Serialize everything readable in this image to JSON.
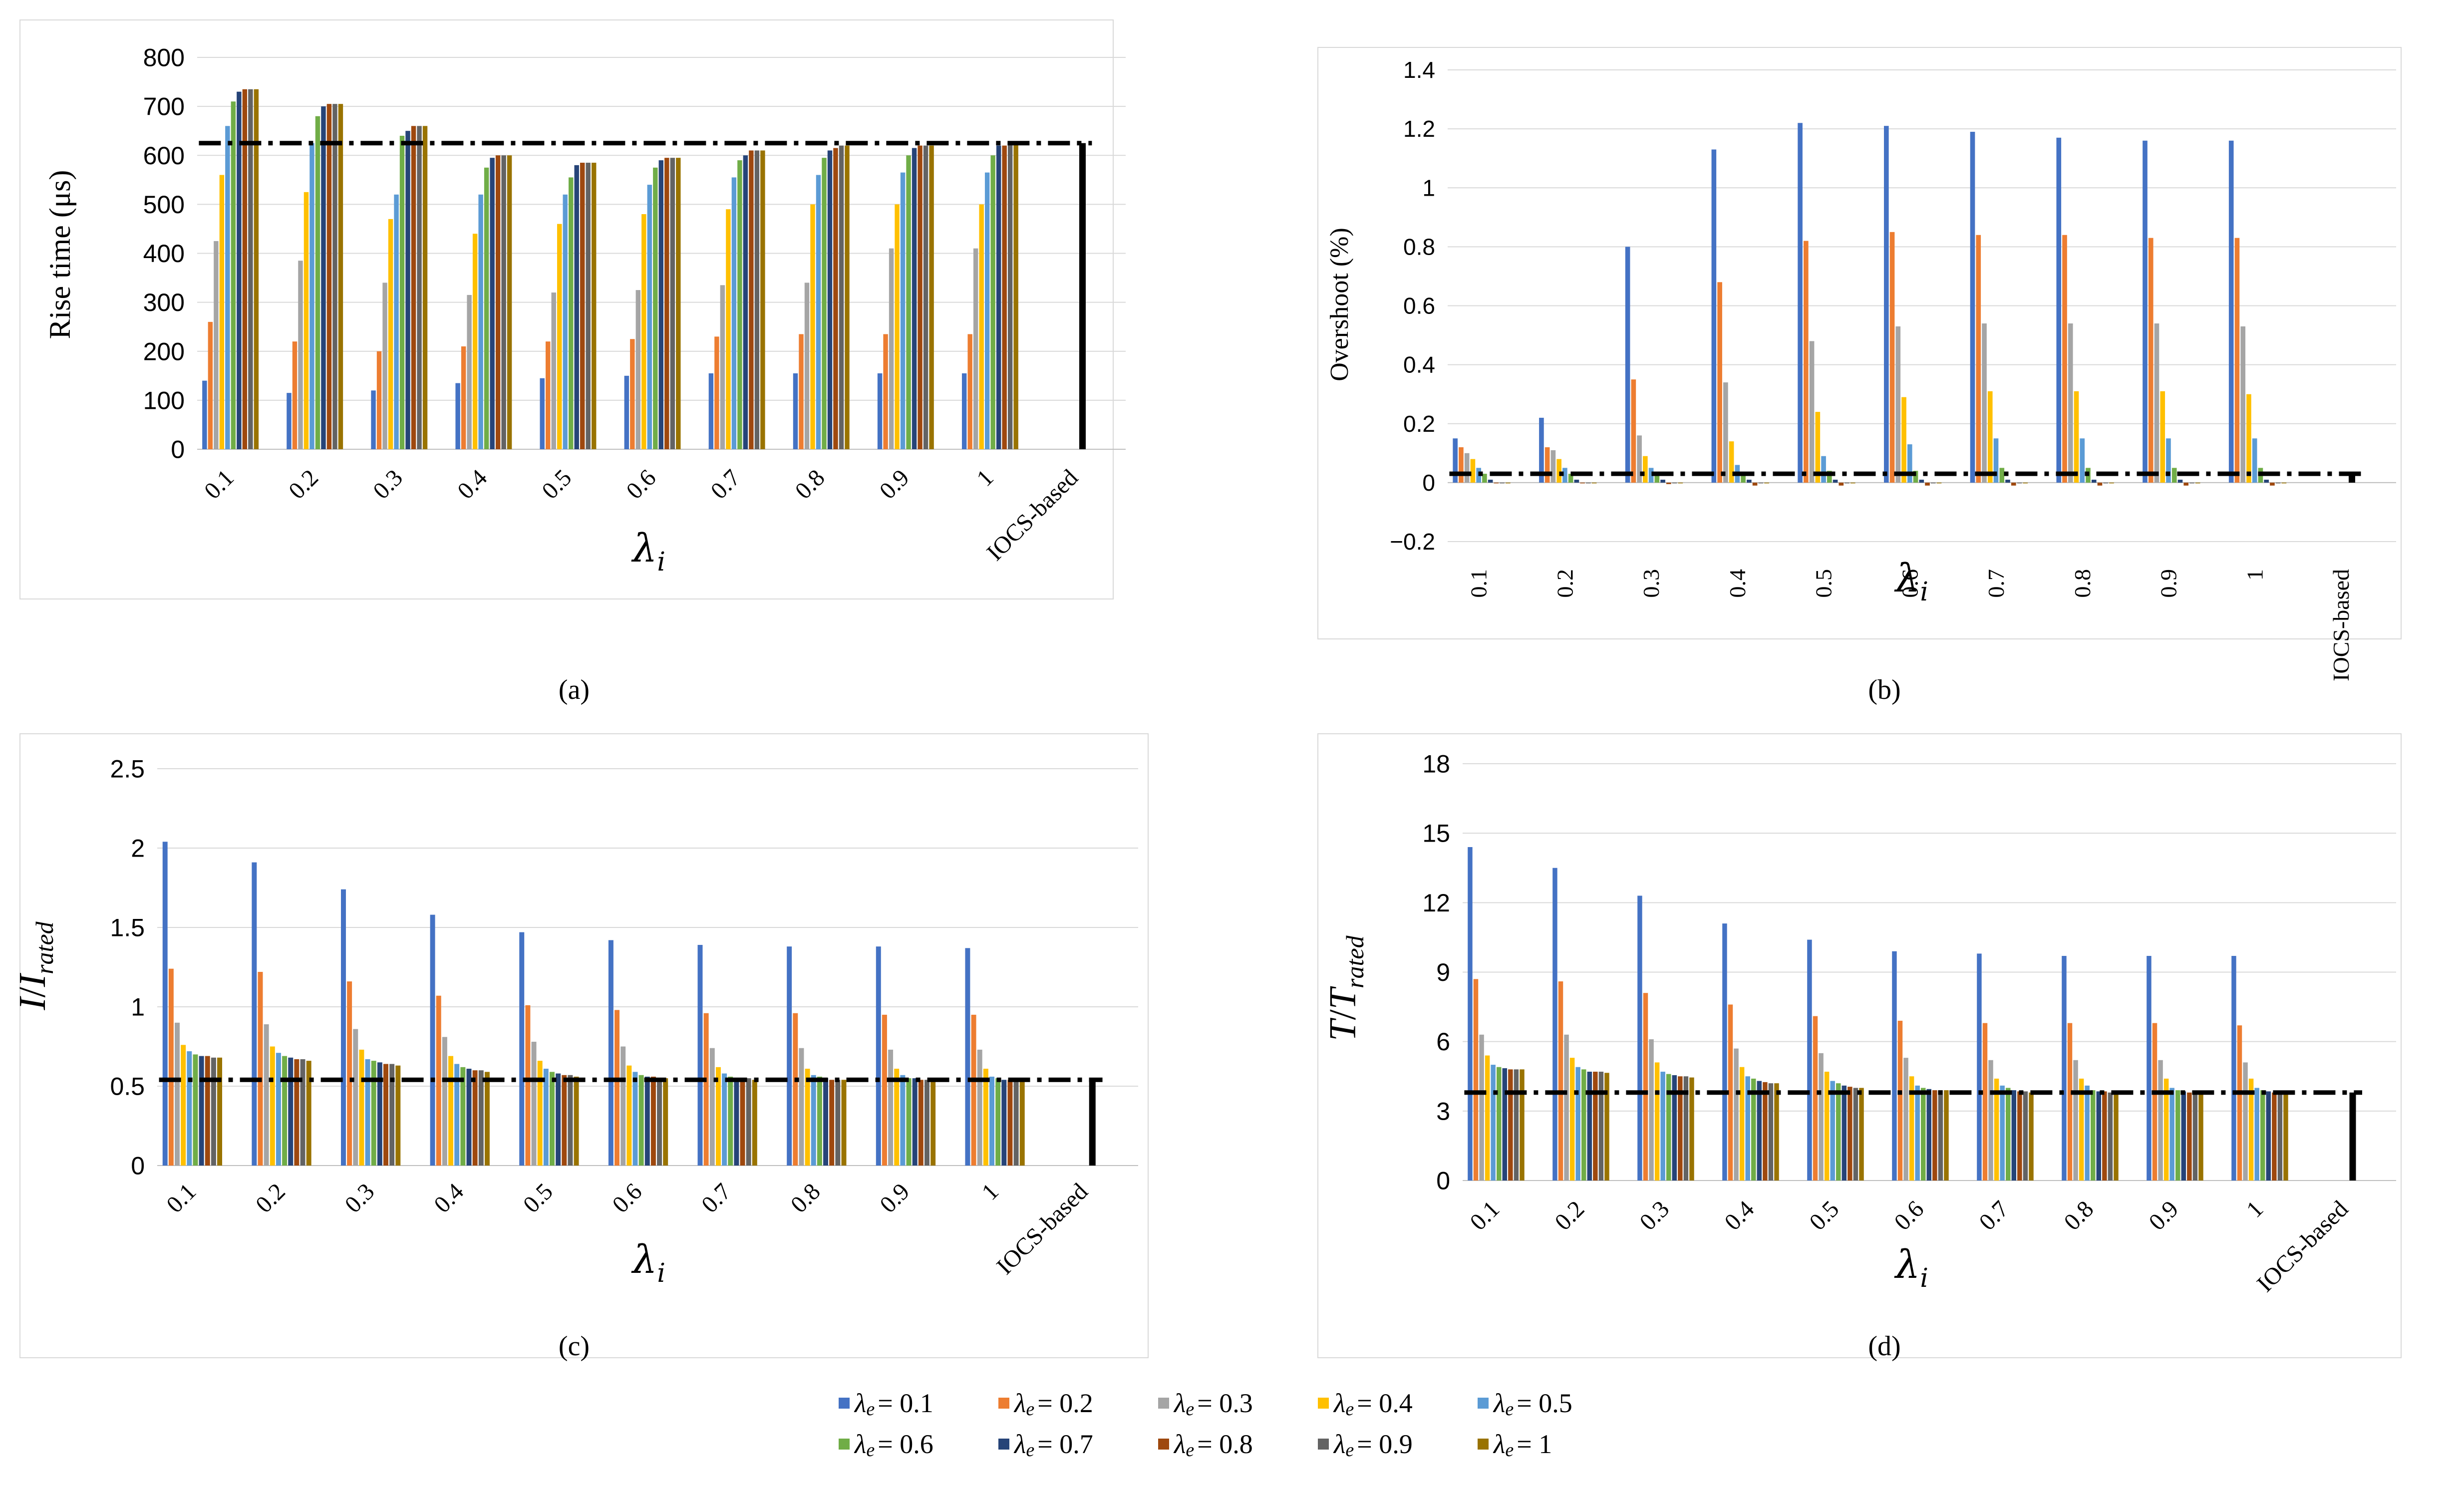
{
  "legend": {
    "prefix": "λ",
    "subscript": "e",
    "entries": [
      "= 0.1",
      "= 0.2",
      "= 0.3",
      "= 0.4",
      "= 0.5",
      "= 0.6",
      "= 0.7",
      "= 0.8",
      "= 0.9",
      "= 1"
    ]
  },
  "series_colors": [
    "#4472C4",
    "#ED7D31",
    "#A5A5A5",
    "#FFC000",
    "#5B9BD5",
    "#70AD47",
    "#264478",
    "#9E480E",
    "#636363",
    "#997300"
  ],
  "reference_color": "#000000",
  "chart_data": [
    {
      "type": "bar",
      "panel_label": "(a)",
      "categories": [
        "0.1",
        "0.2",
        "0.3",
        "0.4",
        "0.5",
        "0.6",
        "0.7",
        "0.8",
        "0.9",
        "1",
        "IOCS-based"
      ],
      "ylabel": "Rise time (μs)",
      "xlabel": "λ_i",
      "xlabel_main": "λ",
      "xlabel_sub": "i",
      "ylim": [
        0,
        800
      ],
      "yticks": [
        0,
        100,
        200,
        300,
        400,
        500,
        600,
        700,
        800
      ],
      "ytick_labels": [
        "0",
        "100",
        "200",
        "300",
        "400",
        "500",
        "600",
        "700",
        "800"
      ],
      "reference_line": 625,
      "reference_bar": 625,
      "series": [
        {
          "name": "λe = 0.1",
          "values": [
            140,
            115,
            120,
            135,
            145,
            150,
            155,
            155,
            155,
            155,
            null
          ]
        },
        {
          "name": "λe = 0.2",
          "values": [
            260,
            220,
            200,
            210,
            220,
            225,
            230,
            235,
            235,
            235,
            null
          ]
        },
        {
          "name": "λe = 0.3",
          "values": [
            425,
            385,
            340,
            315,
            320,
            325,
            335,
            340,
            410,
            410,
            null
          ]
        },
        {
          "name": "λe = 0.4",
          "values": [
            560,
            525,
            470,
            440,
            460,
            480,
            490,
            500,
            500,
            500,
            null
          ]
        },
        {
          "name": "λe = 0.5",
          "values": [
            660,
            625,
            520,
            520,
            520,
            540,
            555,
            560,
            565,
            565,
            null
          ]
        },
        {
          "name": "λe = 0.6",
          "values": [
            710,
            680,
            640,
            575,
            555,
            575,
            590,
            595,
            600,
            600,
            null
          ]
        },
        {
          "name": "λe = 0.7",
          "values": [
            730,
            700,
            650,
            595,
            580,
            590,
            600,
            610,
            615,
            620,
            null
          ]
        },
        {
          "name": "λe = 0.8",
          "values": [
            735,
            705,
            660,
            600,
            585,
            595,
            610,
            615,
            620,
            620,
            null
          ]
        },
        {
          "name": "λe = 0.9",
          "values": [
            735,
            705,
            660,
            600,
            585,
            595,
            610,
            620,
            620,
            625,
            null
          ]
        },
        {
          "name": "λe = 1",
          "values": [
            735,
            705,
            660,
            600,
            585,
            595,
            610,
            620,
            620,
            625,
            null
          ]
        }
      ]
    },
    {
      "type": "bar",
      "panel_label": "(b)",
      "categories": [
        "0.1",
        "0.2",
        "0.3",
        "0.4",
        "0.5",
        "0.6",
        "0.7",
        "0.8",
        "0.9",
        "1",
        "IOCS-based"
      ],
      "ylabel": "Overshoot (%)",
      "xlabel": "λ_i",
      "xlabel_main": "λ",
      "xlabel_sub": "i",
      "ylim": [
        -0.2,
        1.4
      ],
      "yticks": [
        -0.2,
        0,
        0.2,
        0.4,
        0.6,
        0.8,
        1,
        1.2,
        1.4
      ],
      "ytick_labels": [
        "−0.2",
        "0",
        "0.2",
        "0.4",
        "0.6",
        "0.8",
        "1",
        "1.2",
        "1.4"
      ],
      "reference_line": 0.03,
      "reference_bar": 0.03,
      "series": [
        {
          "name": "λe = 0.1",
          "values": [
            0.15,
            0.22,
            0.8,
            1.13,
            1.22,
            1.21,
            1.19,
            1.17,
            1.16,
            1.16,
            null
          ]
        },
        {
          "name": "λe = 0.2",
          "values": [
            0.12,
            0.12,
            0.35,
            0.68,
            0.82,
            0.85,
            0.84,
            0.84,
            0.83,
            0.83,
            null
          ]
        },
        {
          "name": "λe = 0.3",
          "values": [
            0.1,
            0.11,
            0.16,
            0.34,
            0.48,
            0.53,
            0.54,
            0.54,
            0.54,
            0.53,
            null
          ]
        },
        {
          "name": "λe = 0.4",
          "values": [
            0.08,
            0.08,
            0.09,
            0.14,
            0.24,
            0.29,
            0.31,
            0.31,
            0.31,
            0.3,
            null
          ]
        },
        {
          "name": "λe = 0.5",
          "values": [
            0.05,
            0.05,
            0.05,
            0.06,
            0.09,
            0.13,
            0.15,
            0.15,
            0.15,
            0.15,
            null
          ]
        },
        {
          "name": "λe = 0.6",
          "values": [
            0.03,
            0.03,
            0.03,
            0.03,
            0.04,
            0.04,
            0.05,
            0.05,
            0.05,
            0.05,
            null
          ]
        },
        {
          "name": "λe = 0.7",
          "values": [
            0.01,
            0.01,
            0.01,
            0.01,
            0.01,
            0.01,
            0.01,
            0.01,
            0.01,
            0.01,
            null
          ]
        },
        {
          "name": "λe = 0.8",
          "values": [
            0,
            0,
            -0.005,
            -0.01,
            -0.01,
            -0.01,
            -0.01,
            -0.01,
            -0.01,
            -0.01,
            null
          ]
        },
        {
          "name": "λe = 0.9",
          "values": [
            0,
            0,
            0,
            0,
            0,
            0,
            0,
            0,
            0,
            0,
            null
          ]
        },
        {
          "name": "λe = 1",
          "values": [
            0,
            0,
            0,
            0,
            0,
            0,
            0,
            0,
            0,
            0,
            null
          ]
        }
      ]
    },
    {
      "type": "bar",
      "panel_label": "(c)",
      "categories": [
        "0.1",
        "0.2",
        "0.3",
        "0.4",
        "0.5",
        "0.6",
        "0.7",
        "0.8",
        "0.9",
        "1",
        "IOCS-based"
      ],
      "ylabel": "I/I_rated",
      "ylabel_num": "I",
      "ylabel_den": "I",
      "ylabel_den_sub": "rated",
      "xlabel": "λ_i",
      "xlabel_main": "λ",
      "xlabel_sub": "i",
      "ylim": [
        0,
        2.5
      ],
      "yticks": [
        0,
        0.5,
        1,
        1.5,
        2,
        2.5
      ],
      "ytick_labels": [
        "0",
        "0.5",
        "1",
        "1.5",
        "2",
        "2.5"
      ],
      "reference_line": 0.54,
      "reference_bar": 0.54,
      "series": [
        {
          "name": "λe = 0.1",
          "values": [
            2.04,
            1.91,
            1.74,
            1.58,
            1.47,
            1.42,
            1.39,
            1.38,
            1.38,
            1.37,
            null
          ]
        },
        {
          "name": "λe = 0.2",
          "values": [
            1.24,
            1.22,
            1.16,
            1.07,
            1.01,
            0.98,
            0.96,
            0.96,
            0.95,
            0.95,
            null
          ]
        },
        {
          "name": "λe = 0.3",
          "values": [
            0.9,
            0.89,
            0.86,
            0.81,
            0.78,
            0.75,
            0.74,
            0.74,
            0.73,
            0.73,
            null
          ]
        },
        {
          "name": "λe = 0.4",
          "values": [
            0.76,
            0.75,
            0.73,
            0.69,
            0.66,
            0.63,
            0.62,
            0.61,
            0.61,
            0.61,
            null
          ]
        },
        {
          "name": "λe = 0.5",
          "values": [
            0.72,
            0.71,
            0.67,
            0.64,
            0.61,
            0.59,
            0.58,
            0.57,
            0.57,
            0.56,
            null
          ]
        },
        {
          "name": "λe = 0.6",
          "values": [
            0.7,
            0.69,
            0.66,
            0.62,
            0.59,
            0.57,
            0.56,
            0.56,
            0.55,
            0.55,
            null
          ]
        },
        {
          "name": "λe = 0.7",
          "values": [
            0.69,
            0.68,
            0.65,
            0.61,
            0.58,
            0.56,
            0.55,
            0.55,
            0.55,
            0.54,
            null
          ]
        },
        {
          "name": "λe = 0.8",
          "values": [
            0.69,
            0.67,
            0.64,
            0.6,
            0.57,
            0.56,
            0.55,
            0.54,
            0.54,
            0.54,
            null
          ]
        },
        {
          "name": "λe = 0.9",
          "values": [
            0.68,
            0.67,
            0.64,
            0.6,
            0.57,
            0.55,
            0.55,
            0.54,
            0.54,
            0.54,
            null
          ]
        },
        {
          "name": "λe = 1",
          "values": [
            0.68,
            0.66,
            0.63,
            0.59,
            0.56,
            0.55,
            0.54,
            0.54,
            0.54,
            0.54,
            null
          ]
        }
      ]
    },
    {
      "type": "bar",
      "panel_label": "(d)",
      "categories": [
        "0.1",
        "0.2",
        "0.3",
        "0.4",
        "0.5",
        "0.6",
        "0.7",
        "0.8",
        "0.9",
        "1",
        "IOCS-based"
      ],
      "ylabel": "T/T_rated",
      "ylabel_num": "T",
      "ylabel_den": "T",
      "ylabel_den_sub": "rated",
      "xlabel": "λ_i",
      "xlabel_main": "λ",
      "xlabel_sub": "i",
      "ylim": [
        0,
        18
      ],
      "yticks": [
        0,
        3,
        6,
        9,
        12,
        15,
        18
      ],
      "ytick_labels": [
        "0",
        "3",
        "6",
        "9",
        "12",
        "15",
        "18"
      ],
      "reference_line": 3.8,
      "reference_bar": 3.8,
      "series": [
        {
          "name": "λe = 0.1",
          "values": [
            14.4,
            13.5,
            12.3,
            11.1,
            10.4,
            9.9,
            9.8,
            9.7,
            9.7,
            9.7,
            null
          ]
        },
        {
          "name": "λe = 0.2",
          "values": [
            8.7,
            8.6,
            8.1,
            7.6,
            7.1,
            6.9,
            6.8,
            6.8,
            6.8,
            6.7,
            null
          ]
        },
        {
          "name": "λe = 0.3",
          "values": [
            6.3,
            6.3,
            6.1,
            5.7,
            5.5,
            5.3,
            5.2,
            5.2,
            5.2,
            5.1,
            null
          ]
        },
        {
          "name": "λe = 0.4",
          "values": [
            5.4,
            5.3,
            5.1,
            4.9,
            4.7,
            4.5,
            4.4,
            4.4,
            4.4,
            4.4,
            null
          ]
        },
        {
          "name": "λe = 0.5",
          "values": [
            5.0,
            4.9,
            4.7,
            4.5,
            4.3,
            4.1,
            4.1,
            4.1,
            4.0,
            4.0,
            null
          ]
        },
        {
          "name": "λe = 0.6",
          "values": [
            4.9,
            4.8,
            4.6,
            4.4,
            4.2,
            4.0,
            4.0,
            3.9,
            3.9,
            3.9,
            null
          ]
        },
        {
          "name": "λe = 0.7",
          "values": [
            4.85,
            4.7,
            4.55,
            4.3,
            4.1,
            3.95,
            3.9,
            3.85,
            3.85,
            3.85,
            null
          ]
        },
        {
          "name": "λe = 0.8",
          "values": [
            4.8,
            4.7,
            4.5,
            4.25,
            4.05,
            3.9,
            3.85,
            3.85,
            3.8,
            3.8,
            null
          ]
        },
        {
          "name": "λe = 0.9",
          "values": [
            4.8,
            4.7,
            4.5,
            4.2,
            4.0,
            3.9,
            3.85,
            3.8,
            3.8,
            3.8,
            null
          ]
        },
        {
          "name": "λe = 1",
          "values": [
            4.8,
            4.65,
            4.45,
            4.2,
            4.0,
            3.9,
            3.8,
            3.8,
            3.8,
            3.8,
            null
          ]
        }
      ]
    }
  ]
}
